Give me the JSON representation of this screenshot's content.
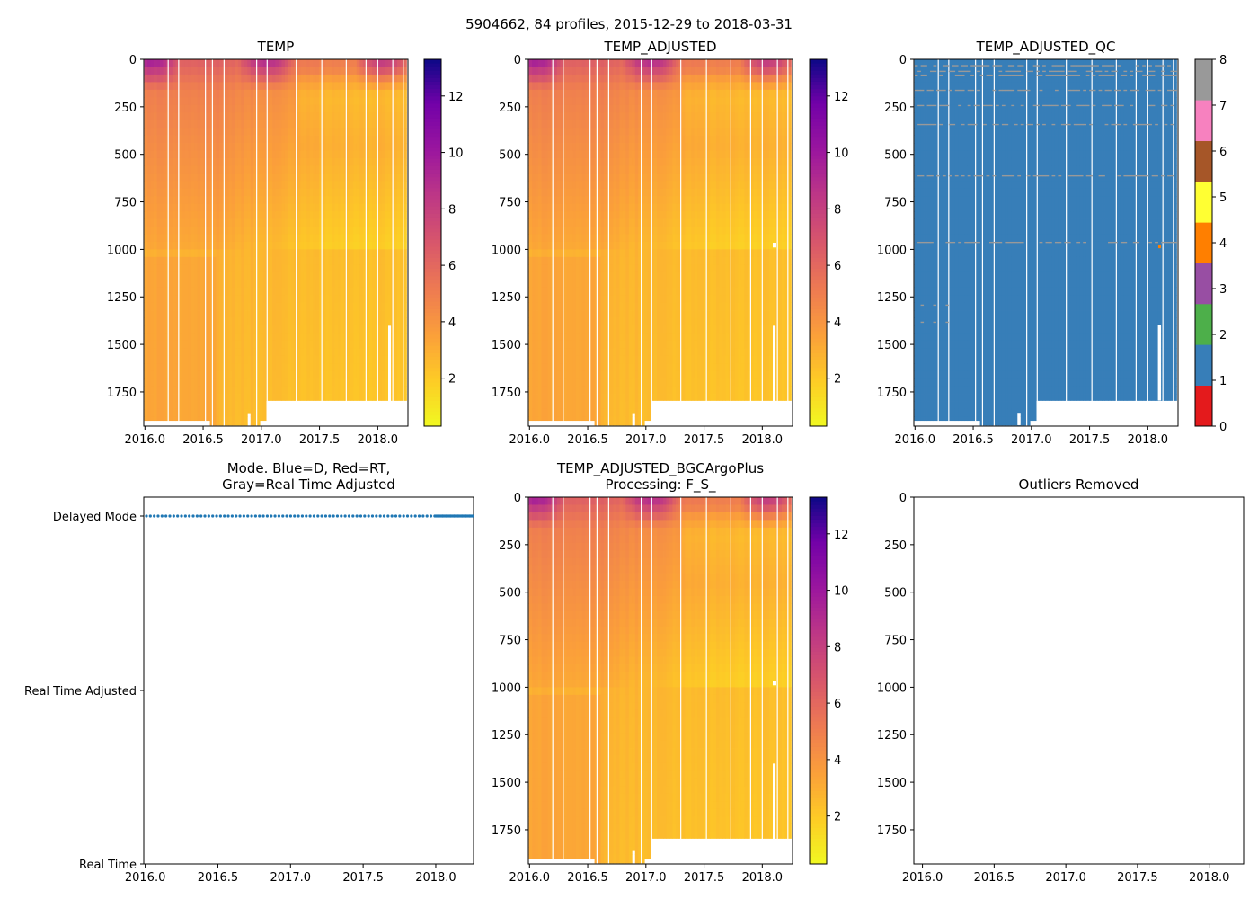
{
  "figure": {
    "suptitle": "5904662, 84 profiles, 2015-12-29 to 2018-03-31"
  },
  "colors": {
    "qc": [
      "#e41a1c",
      "#377eb8",
      "#4daf4a",
      "#984ea3",
      "#ff7f00",
      "#ffff33",
      "#a65628",
      "#f781bf",
      "#999999"
    ],
    "mode_dots": "#1f77b4"
  },
  "chart_data": [
    {
      "id": "temp",
      "type": "heatmap",
      "title": "TEMP",
      "xlim": [
        2015.99,
        2018.26
      ],
      "ylim": [
        1930,
        0
      ],
      "xticks": [
        "2016.0",
        "2016.5",
        "2017.0",
        "2017.5",
        "2018.0"
      ],
      "yticks": [
        "0",
        "250",
        "500",
        "750",
        "1000",
        "1250",
        "1500",
        "1750"
      ],
      "colorbar": {
        "range": [
          0.3,
          13.3
        ],
        "ticks": [
          "2",
          "4",
          "6",
          "8",
          "10",
          "12"
        ],
        "cmap": "plasma_r"
      },
      "profiles": 84,
      "missing_profile_columns": [
        0.2,
        0.29,
        0.52,
        0.58,
        0.68,
        0.96,
        1.05,
        1.3,
        1.52,
        1.73,
        1.9,
        2.0,
        2.13,
        2.22
      ],
      "bottom_depth_segments": [
        {
          "x": [
            2016.0,
            2016.56
          ],
          "depth": 1900
        },
        {
          "x": [
            2016.56,
            2016.98
          ],
          "depth": 1925
        },
        {
          "x": [
            2016.98,
            2017.05
          ],
          "depth": 1900
        },
        {
          "x": [
            2017.05,
            2018.26
          ],
          "depth": 1795
        }
      ]
    },
    {
      "id": "temp_adjusted",
      "type": "heatmap",
      "title": "TEMP_ADJUSTED",
      "xlim": [
        2015.99,
        2018.26
      ],
      "ylim": [
        1930,
        0
      ],
      "xticks": [
        "2016.0",
        "2016.5",
        "2017.0",
        "2017.5",
        "2018.0"
      ],
      "yticks": [
        "0",
        "250",
        "500",
        "750",
        "1000",
        "1250",
        "1500",
        "1750"
      ],
      "colorbar": {
        "range": [
          0.3,
          13.3
        ],
        "ticks": [
          "2",
          "4",
          "6",
          "8",
          "10",
          "12"
        ],
        "cmap": "plasma_r"
      }
    },
    {
      "id": "temp_adjusted_qc",
      "type": "heatmap",
      "title": "TEMP_ADJUSTED_QC",
      "xlim": [
        2015.99,
        2018.26
      ],
      "ylim": [
        1930,
        0
      ],
      "xticks": [
        "2016.0",
        "2016.5",
        "2017.0",
        "2017.5",
        "2018.0"
      ],
      "yticks": [
        "0",
        "250",
        "500",
        "750",
        "1000",
        "1250",
        "1500",
        "1750"
      ],
      "colorbar": {
        "range": [
          0,
          8
        ],
        "ticks": [
          "0",
          "1",
          "2",
          "3",
          "4",
          "5",
          "6",
          "7",
          "8"
        ],
        "cmap": "qc"
      },
      "dominant_flag": 1,
      "flag8_depths": [
        30,
        60,
        80,
        160,
        240,
        340,
        610,
        960
      ]
    },
    {
      "id": "mode",
      "type": "scatter",
      "title_lines": [
        "Mode. Blue=D, Red=RT,",
        "Gray=Real Time Adjusted"
      ],
      "xlim": [
        2015.99,
        2018.26
      ],
      "xticks": [
        "2016.0",
        "2016.5",
        "2017.0",
        "2017.5",
        "2018.0"
      ],
      "ycategories": [
        "Delayed Mode",
        "Real Time Adjusted",
        "Real Time"
      ],
      "all_profiles_mode": "Delayed Mode"
    },
    {
      "id": "bgcargoplus",
      "type": "heatmap",
      "title_lines": [
        "TEMP_ADJUSTED_BGCArgoPlus",
        "Processing: F_S_"
      ],
      "xlim": [
        2015.99,
        2018.26
      ],
      "ylim": [
        1930,
        0
      ],
      "xticks": [
        "2016.0",
        "2016.5",
        "2017.0",
        "2017.5",
        "2018.0"
      ],
      "yticks": [
        "0",
        "250",
        "500",
        "750",
        "1000",
        "1250",
        "1500",
        "1750"
      ],
      "colorbar": {
        "range": [
          0.3,
          13.3
        ],
        "ticks": [
          "2",
          "4",
          "6",
          "8",
          "10",
          "12"
        ],
        "cmap": "plasma_r"
      }
    },
    {
      "id": "outliers",
      "type": "scatter",
      "title": "Outliers Removed",
      "xlim": [
        2015.94,
        2018.24
      ],
      "ylim": [
        1930,
        0
      ],
      "xticks": [
        "2016.0",
        "2016.5",
        "2017.0",
        "2017.5",
        "2018.0"
      ],
      "yticks": [
        "0",
        "250",
        "500",
        "750",
        "1000",
        "1250",
        "1500",
        "1750"
      ],
      "points": []
    }
  ]
}
